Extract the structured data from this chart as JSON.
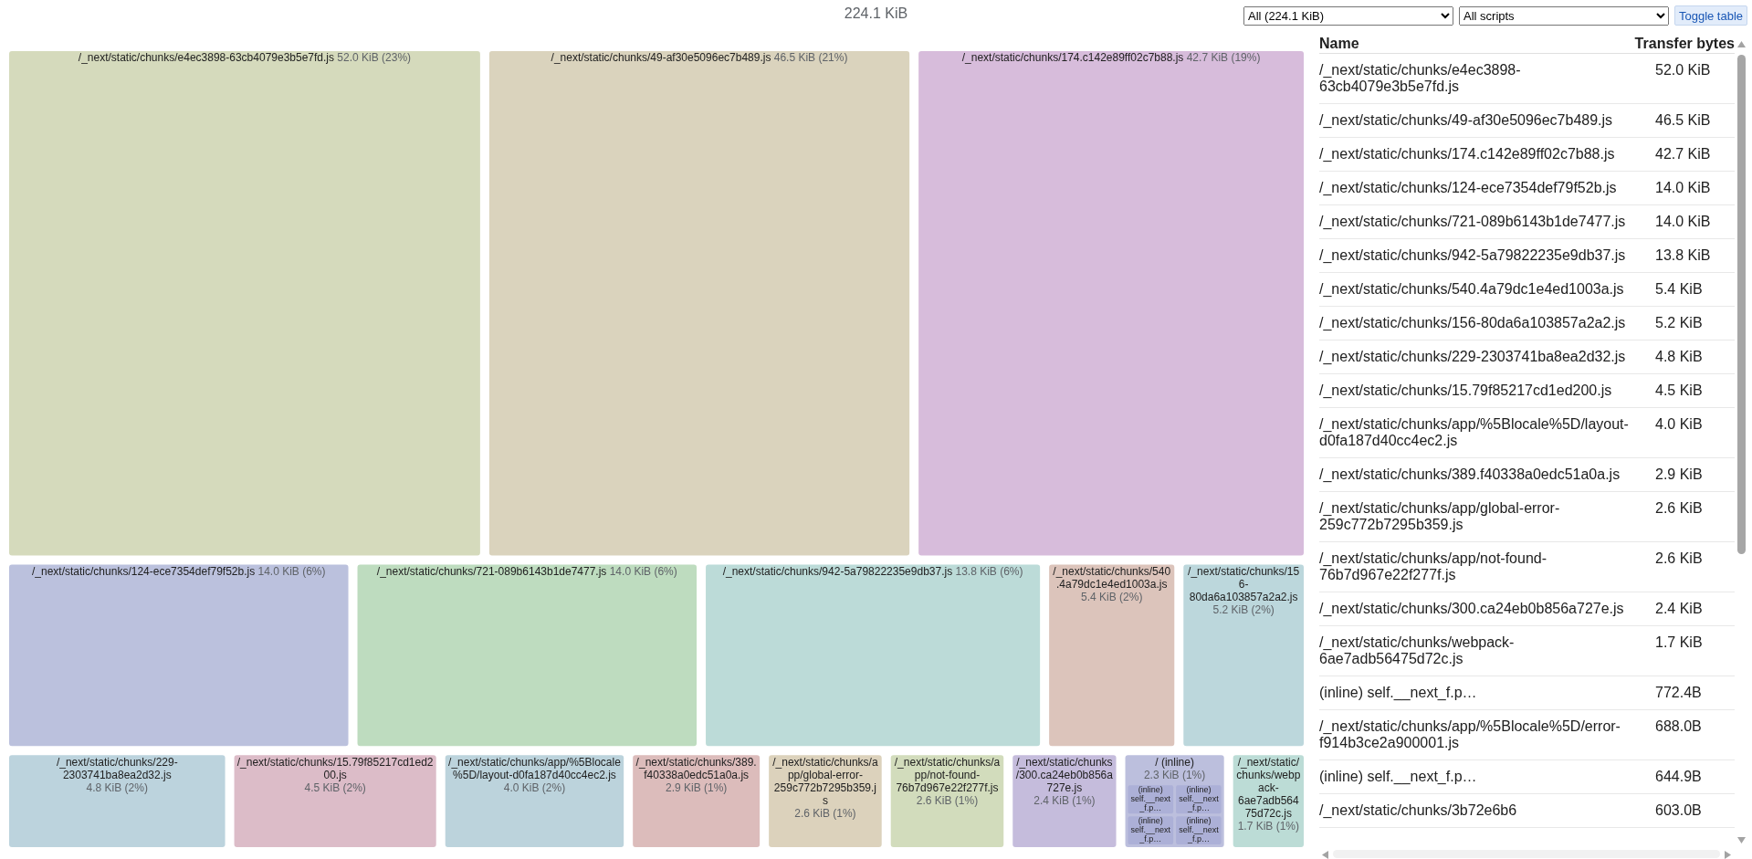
{
  "chart_data": [
    {
      "type": "other",
      "title": "224.1 KiB",
      "categories": [
        "/_next/static/chunks/e4ec3898-63cb4079e3b5e7fd.js",
        "/_next/static/chunks/49-af30e5096ec7b489.js",
        "/_next/static/chunks/174.c142e89ff02c7b88.js",
        "/_next/static/chunks/124-ece7354def79f52b.js",
        "/_next/static/chunks/721-089b6143b1de7477.js",
        "/_next/static/chunks/942-5a79822235e9db37.js",
        "/_next/static/chunks/540.4a79dc1e4ed1003a.js",
        "/_next/static/chunks/156-80da6a103857a2a2.js",
        "/_next/static/chunks/229-2303741ba8ea2d32.js",
        "/_next/static/chunks/15.79f85217cd1ed200.js",
        "/_next/static/chunks/app/%5Blocale%5D/layout-d0fa187d40cc4ec2.js",
        "/_next/static/chunks/389.f40338a0edc51a0a.js",
        "/_next/static/chunks/app/global-error-259c772b7295b359.js",
        "/_next/static/chunks/app/not-found-76b7d967e22f277f.js",
        "/_next/static/chunks/300.ca24eb0b856a727e.js",
        "/ (inline)",
        "/_next/static/chunks/webpack-6ae7adb56475d72c.js"
      ],
      "values": [
        52.0,
        46.5,
        42.7,
        14.0,
        14.0,
        13.8,
        5.4,
        5.2,
        4.8,
        4.5,
        4.0,
        2.9,
        2.6,
        2.6,
        2.4,
        2.3,
        1.7
      ],
      "value_labels": [
        "52.0 KiB (23%)",
        "46.5 KiB (21%)",
        "42.7 KiB (19%)",
        "14.0 KiB (6%)",
        "14.0 KiB (6%)",
        "13.8 KiB (6%)",
        "5.4 KiB (2%)",
        "5.2 KiB (2%)",
        "4.8 KiB (2%)",
        "4.5 KiB (2%)",
        "4.0 KiB (2%)",
        "2.9 KiB (1%)",
        "2.6 KiB (1%)",
        "2.6 KiB (1%)",
        "2.4 KiB (1%)",
        "2.3 KiB (1%)",
        "1.7 KiB (1%)"
      ],
      "colors": [
        "#d5dabc",
        "#dad3bd",
        "#d7bcdb",
        "#bbc1dd",
        "#bedcbf",
        "#bcdbd8",
        "#dcc4bb",
        "#bcd7dc",
        "#bcd3dd",
        "#dcbcc8",
        "#bcd3dc",
        "#dcbcbb",
        "#dcd2bc",
        "#d2dcbc",
        "#c5bcdc",
        "#bcbfdd",
        "#bcdcd6"
      ],
      "annotations": [
        "All (224.1 KiB)",
        "All scripts",
        "Toggle table",
        {
          "text": "(inline) self.__next_f.p…",
          "x": "/ (inline)"
        },
        {
          "text": "(inline) self.__next_f.p…",
          "x": "/ (inline)"
        },
        {
          "text": "(inline) self.__next_f.p…",
          "x": "/ (inline)"
        },
        {
          "text": "(inline) self.__next_f.p…",
          "x": "/ (inline)"
        }
      ]
    },
    {
      "type": "other",
      "categories": [
        "/_next/static/chunks/e4ec3898-63cb4079e3b5e7fd.js",
        "/_next/static/chunks/49-af30e5096ec7b489.js",
        "/_next/static/chunks/174.c142e89ff02c7b88.js",
        "/_next/static/chunks/124-ece7354def79f52b.js",
        "/_next/static/chunks/721-089b6143b1de7477.js",
        "/_next/static/chunks/942-5a79822235e9db37.js",
        "/_next/static/chunks/540.4a79dc1e4ed1003a.js",
        "/_next/static/chunks/156-80da6a103857a2a2.js",
        "/_next/static/chunks/229-2303741ba8ea2d32.js",
        "/_next/static/chunks/15.79f85217cd1ed200.js",
        "/_next/static/chunks/app/%5Blocale%5D/layout-d0fa187d40cc4ec2.js",
        "/_next/static/chunks/389.f40338a0edc51a0a.js",
        "/_next/static/chunks/app/global-error-259c772b7295b359.js",
        "/_next/static/chunks/app/not-found-76b7d967e22f277f.js",
        "/_next/static/chunks/300.ca24eb0b856a727e.js",
        "/_next/static/chunks/webpack-6ae7adb56475d72c.js",
        "(inline) self.__next_f.p…",
        "/_next/static/chunks/app/%5Blocale%5D/error-f914b3ce2a900001.js",
        "(inline) self.__next_f.p…",
        "/_next/static/chunks/3b72e6b6"
      ],
      "value_labels": [
        "52.0 KiB",
        "46.5 KiB",
        "42.7 KiB",
        "14.0 KiB",
        "14.0 KiB",
        "13.8 KiB",
        "5.4 KiB",
        "5.2 KiB",
        "4.8 KiB",
        "4.5 KiB",
        "4.0 KiB",
        "2.9 KiB",
        "2.6 KiB",
        "2.6 KiB",
        "2.4 KiB",
        "1.7 KiB",
        "772.4B",
        "688.0B",
        "644.9B",
        "603.0B"
      ],
      "annotations": [
        "Name",
        "Transfer bytes"
      ]
    }
  ]
}
